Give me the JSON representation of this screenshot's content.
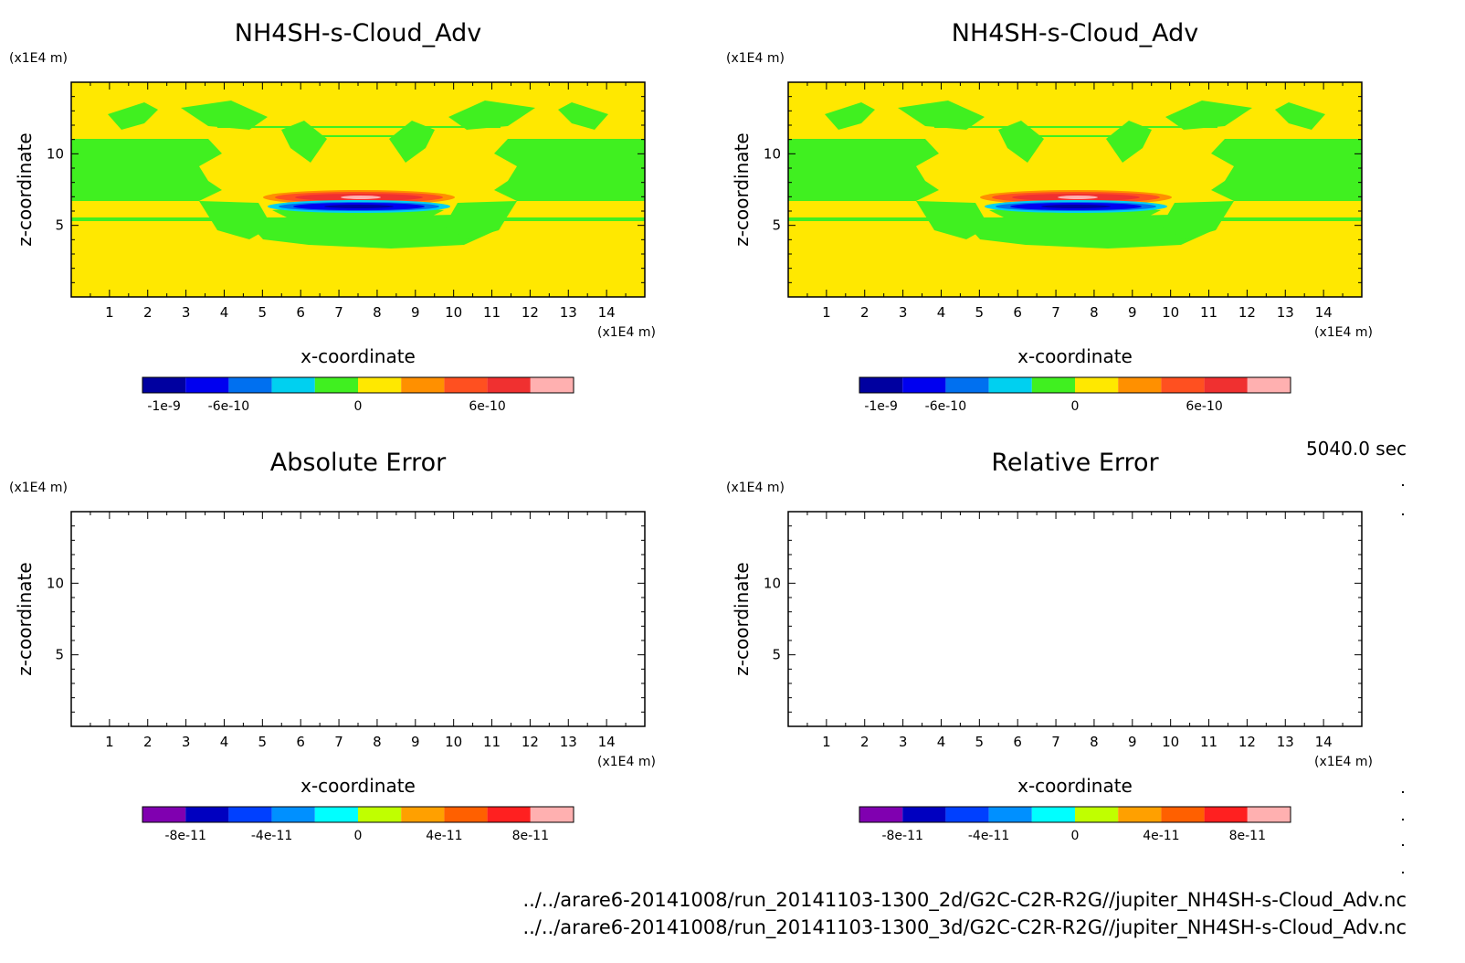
{
  "figure": {
    "time_label": "5040.0 sec",
    "source_files": [
      "../../arare6-20141008/run_20141103-1300_2d/G2C-C2R-R2G//jupiter_NH4SH-s-Cloud_Adv.nc",
      "../../arare6-20141008/run_20141103-1300_3d/G2C-C2R-R2G//jupiter_NH4SH-s-Cloud_Adv.nc"
    ]
  },
  "chart_data": [
    {
      "type": "heatmap",
      "title": "NH4SH-s-Cloud_Adv",
      "xlabel": "x-coordinate",
      "ylabel": "z-coordinate",
      "x_unit": "(x1E4 m)",
      "y_unit": "(x1E4 m)",
      "xlim": [
        0,
        15
      ],
      "ylim": [
        0,
        15
      ],
      "xticks": [
        "1",
        "2",
        "3",
        "4",
        "5",
        "6",
        "7",
        "8",
        "9",
        "10",
        "11",
        "12",
        "13",
        "14"
      ],
      "yticks": [
        "5",
        "10"
      ],
      "colorbar": {
        "colors": [
          "#0000a0",
          "#0000f0",
          "#0070f0",
          "#00d0f0",
          "#40f020",
          "#ffe800",
          "#ff9000",
          "#ff5020",
          "#f03030",
          "#ffb0b0"
        ],
        "labels": [
          "-1e-9",
          "-6e-10",
          "0",
          "6e-10"
        ]
      }
    },
    {
      "type": "heatmap",
      "title": "NH4SH-s-Cloud_Adv",
      "xlabel": "x-coordinate",
      "ylabel": "z-coordinate",
      "x_unit": "(x1E4 m)",
      "y_unit": "(x1E4 m)",
      "xlim": [
        0,
        15
      ],
      "ylim": [
        0,
        15
      ],
      "xticks": [
        "1",
        "2",
        "3",
        "4",
        "5",
        "6",
        "7",
        "8",
        "9",
        "10",
        "11",
        "12",
        "13",
        "14"
      ],
      "yticks": [
        "5",
        "10"
      ],
      "colorbar": {
        "colors": [
          "#0000a0",
          "#0000f0",
          "#0070f0",
          "#00d0f0",
          "#40f020",
          "#ffe800",
          "#ff9000",
          "#ff5020",
          "#f03030",
          "#ffb0b0"
        ],
        "labels": [
          "-1e-9",
          "-6e-10",
          "0",
          "6e-10"
        ]
      }
    },
    {
      "type": "heatmap",
      "title": "Absolute Error",
      "xlabel": "x-coordinate",
      "ylabel": "z-coordinate",
      "x_unit": "(x1E4 m)",
      "y_unit": "(x1E4 m)",
      "xlim": [
        0,
        15
      ],
      "ylim": [
        0,
        15
      ],
      "xticks": [
        "1",
        "2",
        "3",
        "4",
        "5",
        "6",
        "7",
        "8",
        "9",
        "10",
        "11",
        "12",
        "13",
        "14"
      ],
      "yticks": [
        "5",
        "10"
      ],
      "colorbar": {
        "colors": [
          "#8000b0",
          "#0000c0",
          "#0040ff",
          "#0090ff",
          "#00ffff",
          "#c0ff00",
          "#ffa000",
          "#ff6000",
          "#ff2020",
          "#ffb0b0"
        ],
        "labels": [
          "-8e-11",
          "-4e-11",
          "0",
          "4e-11",
          "8e-11"
        ]
      }
    },
    {
      "type": "heatmap",
      "title": "Relative Error",
      "xlabel": "x-coordinate",
      "ylabel": "z-coordinate",
      "x_unit": "(x1E4 m)",
      "y_unit": "(x1E4 m)",
      "xlim": [
        0,
        15
      ],
      "ylim": [
        0,
        15
      ],
      "xticks": [
        "1",
        "2",
        "3",
        "4",
        "5",
        "6",
        "7",
        "8",
        "9",
        "10",
        "11",
        "12",
        "13",
        "14"
      ],
      "yticks": [
        "5",
        "10"
      ],
      "colorbar": {
        "colors": [
          "#8000b0",
          "#0000c0",
          "#0040ff",
          "#0090ff",
          "#00ffff",
          "#c0ff00",
          "#ffa000",
          "#ff6000",
          "#ff2020",
          "#ffb0b0"
        ],
        "labels": [
          "-8e-11",
          "-4e-11",
          "0",
          "4e-11",
          "8e-11"
        ]
      }
    }
  ]
}
